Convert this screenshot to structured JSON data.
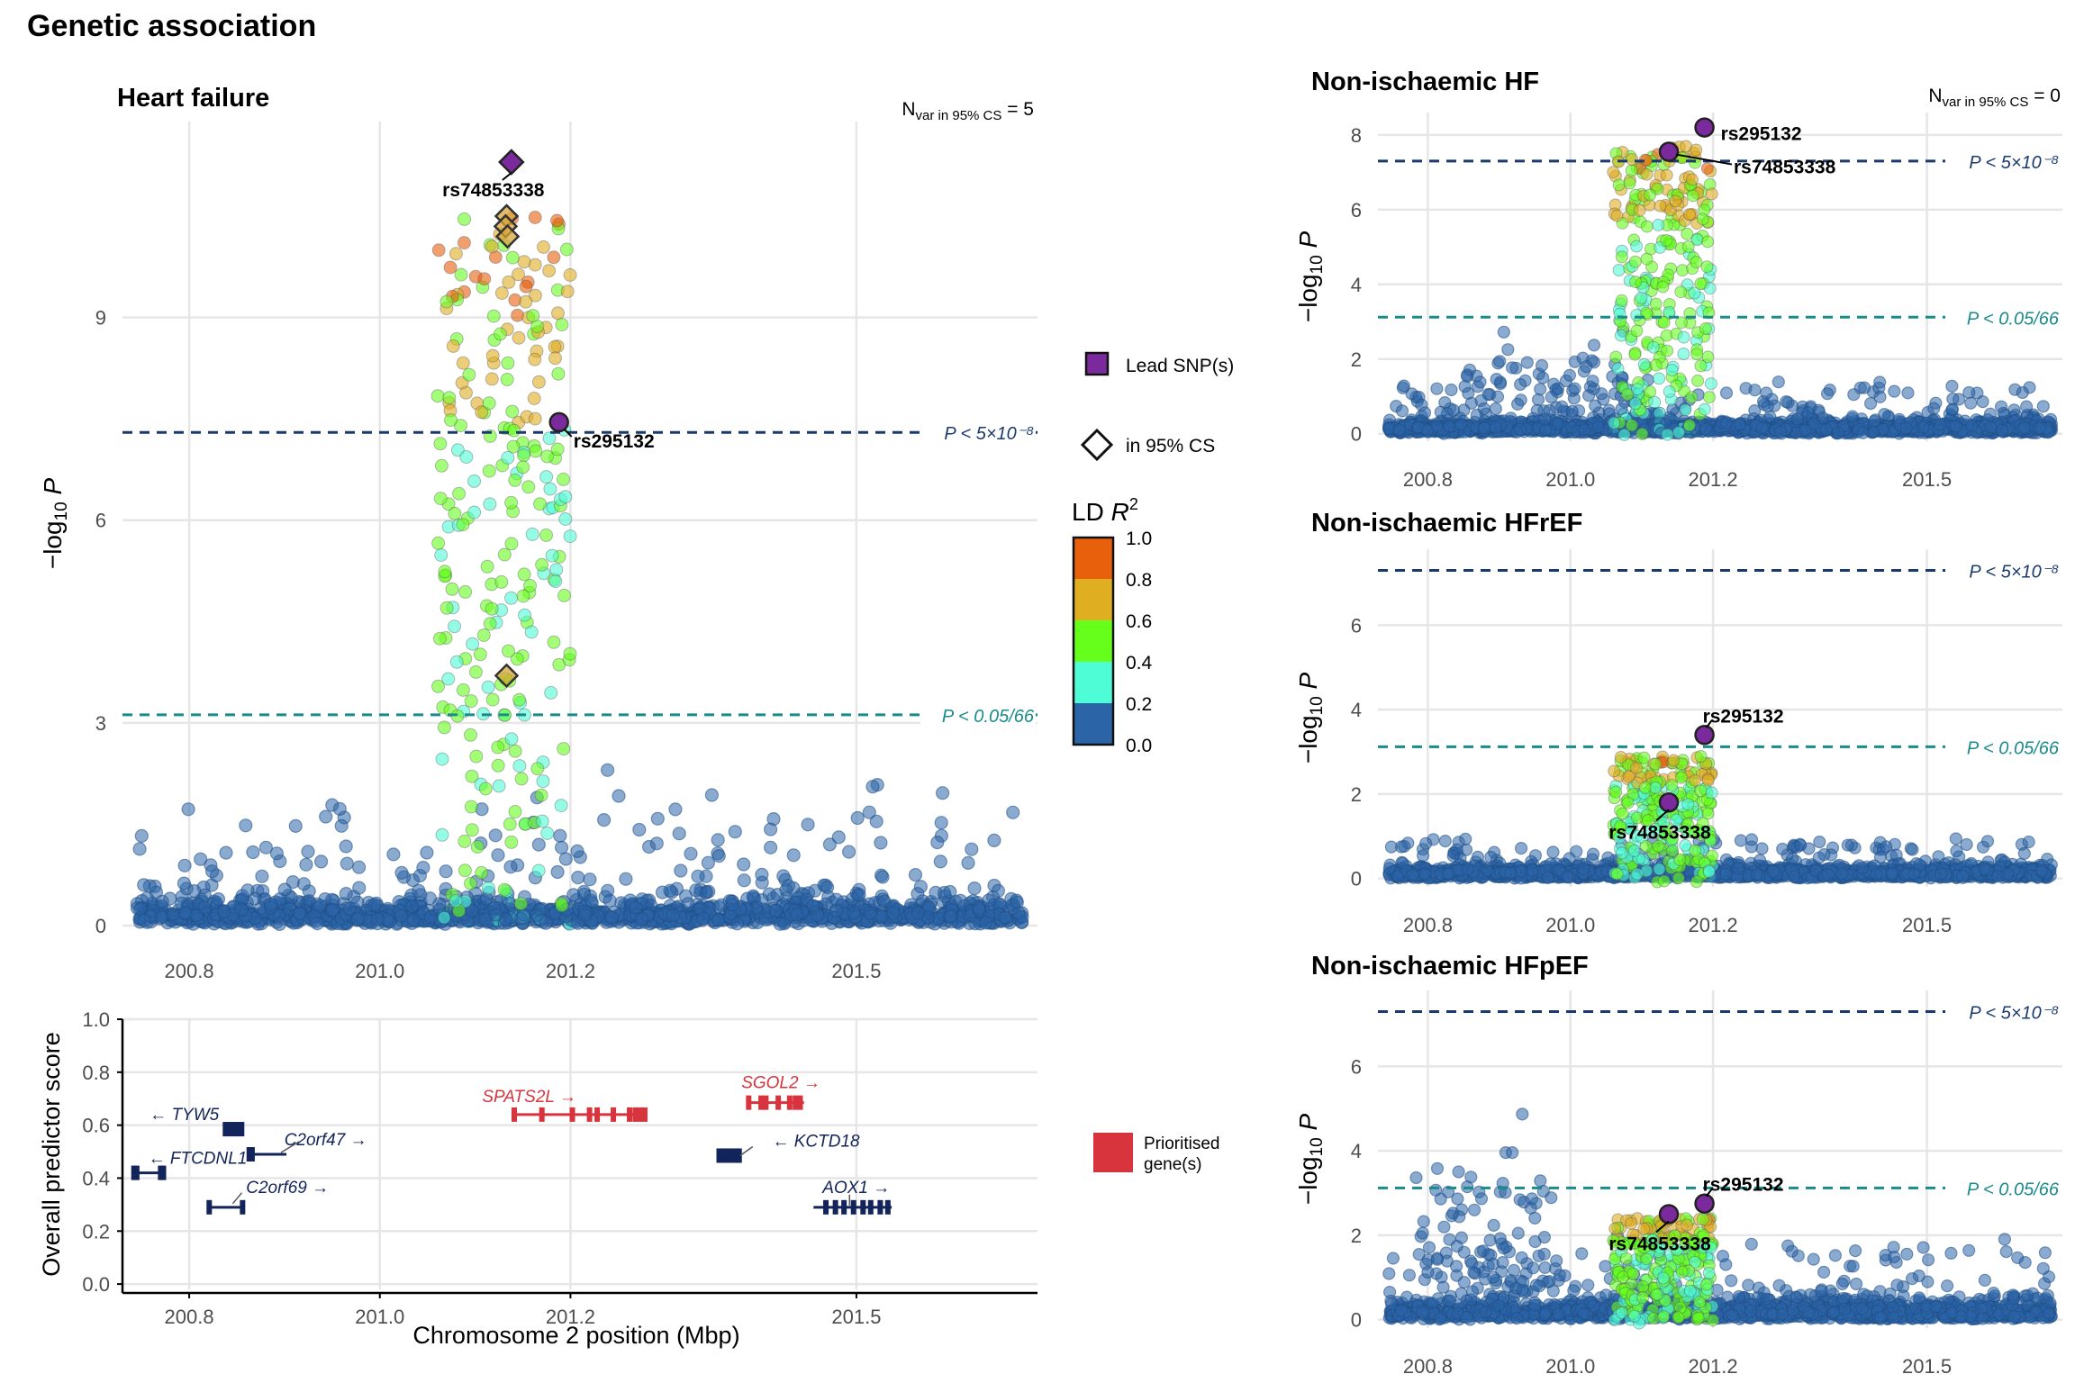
{
  "figure": {
    "title": "Genetic association",
    "x_axis_label": "Chromosome 2 position (Mbp)"
  },
  "colors": {
    "ld_0_0.2": "#2c64a8",
    "ld_0.2_0.4": "#4efcd6",
    "ld_0.4_0.6": "#66ff1c",
    "ld_0.6_0.8": "#e0ae21",
    "ld_0.8_1.0": "#e85f0c",
    "lead_snp": "#7a2a9c",
    "sig_line": "#1a3a6e",
    "bonf_line": "#1b8a8a",
    "gene_default": "#13245a",
    "gene_prioritised": "#d8343e",
    "grid": "#e6e6e6"
  },
  "legend": {
    "lead_snp_label": "Lead SNP(s)",
    "cs_label": "in 95% CS",
    "ld_title": "LD R²",
    "ld_ticks": [
      "1.0",
      "0.8",
      "0.6",
      "0.4",
      "0.2",
      "0.0"
    ],
    "prioritised_label": "Prioritised gene(s)"
  },
  "chart_data": [
    {
      "id": "heart-failure",
      "type": "scatter",
      "title": "Heart failure",
      "annotation": "N_var in 95% CS = 5",
      "ylabel": "-log10 P",
      "xlim": [
        200.73,
        201.69
      ],
      "ylim": [
        0,
        11.9
      ],
      "y_ticks": [
        0,
        3,
        6,
        9
      ],
      "x_ticks": [
        200.8,
        201.0,
        201.2,
        201.5
      ],
      "thresholds": [
        {
          "label": "P < 5×10⁻⁸",
          "y": 7.3,
          "style": "sig"
        },
        {
          "label": "P < 0.05/66",
          "y": 3.12,
          "style": "bonf"
        }
      ],
      "lead_snps": [
        {
          "label": "rs74853338",
          "x": 201.138,
          "y": 11.3,
          "shape": "diamond"
        },
        {
          "label": "rs295132",
          "x": 201.188,
          "y": 7.45,
          "shape": "circle"
        }
      ],
      "credible_set": [
        {
          "x": 201.133,
          "y": 10.5
        },
        {
          "x": 201.132,
          "y": 10.35
        },
        {
          "x": 201.134,
          "y": 10.2
        },
        {
          "x": 201.133,
          "y": 3.7
        }
      ]
    },
    {
      "id": "non-ischaemic-hf",
      "type": "scatter",
      "title": "Non-ischaemic HF",
      "annotation": "N_var in 95% CS = 0",
      "ylabel": "-log10 P",
      "xlim": [
        200.73,
        201.69
      ],
      "ylim": [
        -0.2,
        8.6
      ],
      "y_ticks": [
        0,
        2,
        4,
        6,
        8
      ],
      "x_ticks": [
        200.8,
        201.0,
        201.2,
        201.5
      ],
      "thresholds": [
        {
          "label": "P < 5×10⁻⁸",
          "y": 7.3,
          "style": "sig"
        },
        {
          "label": "P < 0.05/66",
          "y": 3.12,
          "style": "bonf"
        }
      ],
      "lead_snps": [
        {
          "label": "rs295132",
          "x": 201.188,
          "y": 8.2,
          "shape": "circle"
        },
        {
          "label": "rs74853338",
          "x": 201.138,
          "y": 7.55,
          "shape": "circle"
        }
      ]
    },
    {
      "id": "non-ischaemic-hfref",
      "type": "scatter",
      "title": "Non-ischaemic HFrEF",
      "annotation": "",
      "ylabel": "-log10 P",
      "xlim": [
        200.73,
        201.69
      ],
      "ylim": [
        -0.2,
        7.8
      ],
      "y_ticks": [
        0,
        2,
        4,
        6
      ],
      "x_ticks": [
        200.8,
        201.0,
        201.2,
        201.5
      ],
      "thresholds": [
        {
          "label": "P < 5×10⁻⁸",
          "y": 7.3,
          "style": "sig"
        },
        {
          "label": "P < 0.05/66",
          "y": 3.12,
          "style": "bonf"
        }
      ],
      "lead_snps": [
        {
          "label": "rs295132",
          "x": 201.188,
          "y": 3.4,
          "shape": "circle"
        },
        {
          "label": "rs74853338",
          "x": 201.138,
          "y": 1.8,
          "shape": "circle"
        }
      ]
    },
    {
      "id": "non-ischaemic-hfpef",
      "type": "scatter",
      "title": "Non-ischaemic HFpEF",
      "annotation": "",
      "ylabel": "-log10 P",
      "xlim": [
        200.73,
        201.69
      ],
      "ylim": [
        -0.2,
        7.8
      ],
      "y_ticks": [
        0,
        2,
        4,
        6
      ],
      "x_ticks": [
        200.8,
        201.0,
        201.2,
        201.5
      ],
      "thresholds": [
        {
          "label": "P < 5×10⁻⁸",
          "y": 7.3,
          "style": "sig"
        },
        {
          "label": "P < 0.05/66",
          "y": 3.12,
          "style": "bonf"
        }
      ],
      "lead_snps": [
        {
          "label": "rs295132",
          "x": 201.188,
          "y": 2.75,
          "shape": "circle"
        },
        {
          "label": "rs74853338",
          "x": 201.138,
          "y": 2.5,
          "shape": "circle"
        }
      ]
    },
    {
      "id": "gene-track",
      "type": "gene-track",
      "ylabel": "Overall predictor score",
      "xlim": [
        200.73,
        201.69
      ],
      "ylim": [
        -0.02,
        1.0
      ],
      "y_ticks": [
        0.0,
        0.2,
        0.4,
        0.6,
        0.8,
        1.0
      ],
      "x_ticks": [
        200.8,
        201.0,
        201.2,
        201.5
      ],
      "genes": [
        {
          "name": "TYW5",
          "label": "← TYW5",
          "start": 200.837,
          "end": 200.856,
          "score": 0.585,
          "prioritised": false,
          "exons": [
            200.838,
            200.842,
            200.845,
            200.849,
            200.852,
            200.855
          ]
        },
        {
          "name": "FTCDNL1",
          "label": "← FTCDNL1",
          "start": 200.74,
          "end": 200.774,
          "score": 0.42,
          "prioritised": false,
          "exons": [
            200.742,
            200.745,
            200.77,
            200.773
          ]
        },
        {
          "name": "C2orf47",
          "label": "C2orf47 →",
          "start": 200.862,
          "end": 200.902,
          "score": 0.49,
          "prioritised": false,
          "exons": [
            200.863,
            200.866
          ]
        },
        {
          "name": "C2orf69",
          "label": "C2orf69 →",
          "start": 200.82,
          "end": 200.857,
          "score": 0.29,
          "prioritised": false,
          "exons": [
            200.821,
            200.856
          ]
        },
        {
          "name": "SPATS2L",
          "label": "SPATS2L →",
          "start": 201.14,
          "end": 201.28,
          "score": 0.64,
          "prioritised": true,
          "exons": [
            201.141,
            201.17,
            201.202,
            201.22,
            201.228,
            201.245,
            201.262,
            201.268,
            201.273,
            201.278
          ]
        },
        {
          "name": "SGOL2",
          "label": "SGOL2 →",
          "start": 201.385,
          "end": 201.445,
          "score": 0.685,
          "prioritised": true,
          "exons": [
            201.387,
            201.4,
            201.405,
            201.418,
            201.43,
            201.436,
            201.441
          ]
        },
        {
          "name": "KCTD18",
          "label": "← KCTD18",
          "start": 201.355,
          "end": 201.378,
          "score": 0.485,
          "prioritised": false,
          "exons": [
            201.356,
            201.36,
            201.365,
            201.37,
            201.374,
            201.377
          ]
        },
        {
          "name": "AOX1",
          "label": "AOX1 →",
          "start": 201.455,
          "end": 201.537,
          "score": 0.29,
          "prioritised": false,
          "exons": [
            201.468,
            201.478,
            201.487,
            201.497,
            201.507,
            201.515,
            201.525,
            201.533
          ]
        }
      ]
    }
  ]
}
